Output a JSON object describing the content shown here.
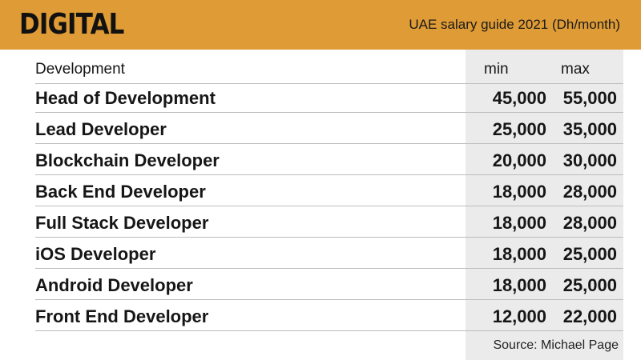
{
  "header": {
    "title": "DIGITAL",
    "subtitle": "UAE salary guide 2021 (Dh/month)"
  },
  "table": {
    "section_label": "Development",
    "col_min": "min",
    "col_max": "max",
    "rows": [
      {
        "role": "Head of Development",
        "min": "45,000",
        "max": "55,000"
      },
      {
        "role": "Lead Developer",
        "min": "25,000",
        "max": "35,000"
      },
      {
        "role": "Blockchain Developer",
        "min": "20,000",
        "max": "30,000"
      },
      {
        "role": "Back End Developer",
        "min": "18,000",
        "max": "28,000"
      },
      {
        "role": "Full Stack Developer",
        "min": "18,000",
        "max": "28,000"
      },
      {
        "role": "iOS Developer",
        "min": "18,000",
        "max": "25,000"
      },
      {
        "role": "Android Developer",
        "min": "18,000",
        "max": "25,000"
      },
      {
        "role": "Front End Developer",
        "min": "12,000",
        "max": "22,000"
      }
    ]
  },
  "footer": {
    "source": "Source: Michael Page"
  },
  "colors": {
    "header_bg": "#df9b35",
    "number_column_bg": "#ebebeb",
    "text": "#141414"
  }
}
